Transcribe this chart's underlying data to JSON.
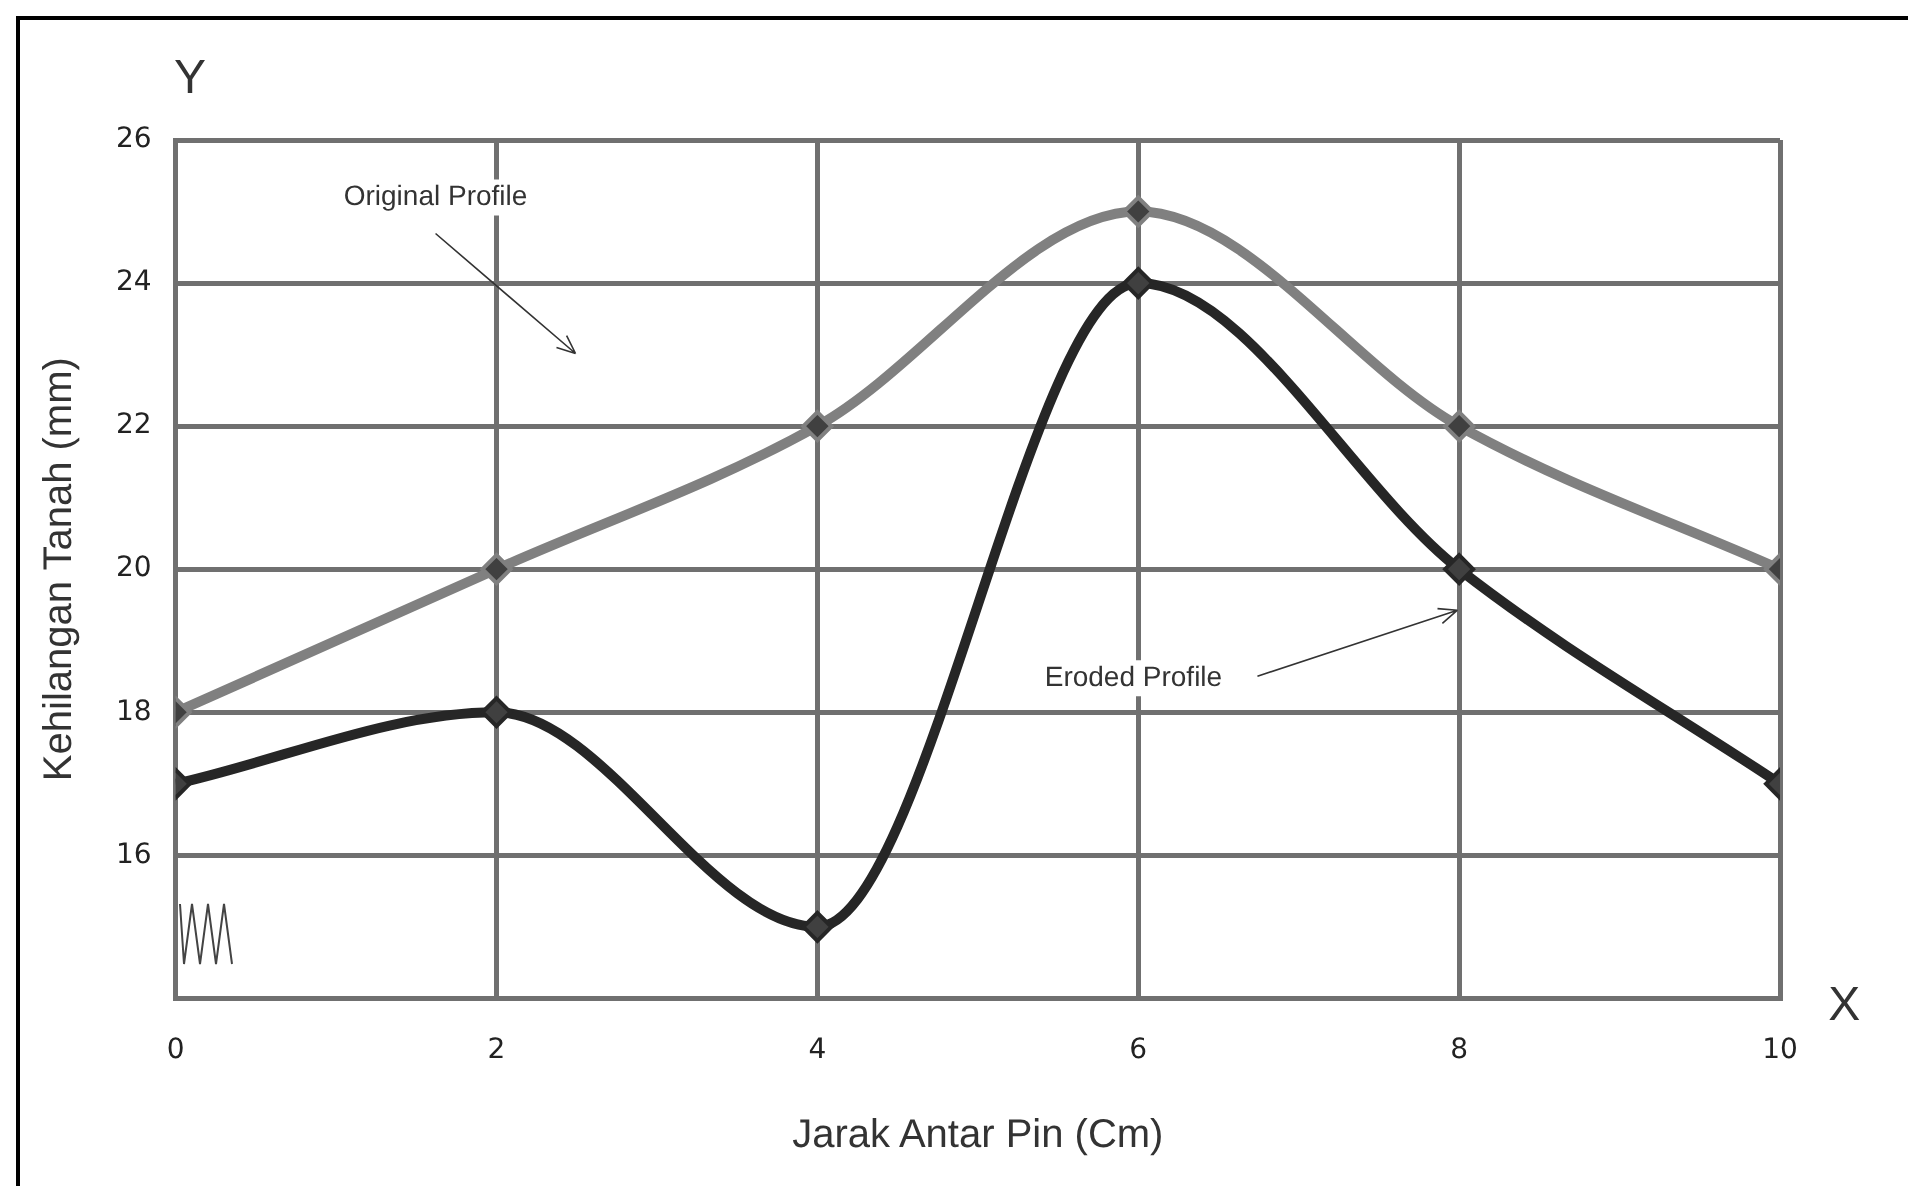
{
  "chart_data": {
    "type": "line",
    "xlabel": "Jarak Antar Pin (Cm)",
    "ylabel": "Kehilangan Tanah (mm)",
    "x": [
      0,
      2,
      4,
      6,
      8,
      10
    ],
    "series": [
      {
        "color": "#808080",
        "values": [
          18,
          20,
          22,
          25,
          22,
          20
        ]
      },
      {
        "color": "#262626",
        "values": [
          17,
          18,
          15,
          24,
          20,
          17
        ]
      }
    ],
    "xlim": [
      0,
      10
    ],
    "xticks": [
      0,
      2,
      4,
      6,
      8,
      10
    ],
    "ylim": [
      14,
      26
    ],
    "yticks": [
      16,
      18,
      20,
      22,
      24,
      26
    ],
    "grid": true,
    "legend": false,
    "marker": "diamond",
    "line_style": "solid",
    "annotations": [
      "Y",
      "X",
      "Original Profile",
      "Eroded Profile"
    ]
  }
}
